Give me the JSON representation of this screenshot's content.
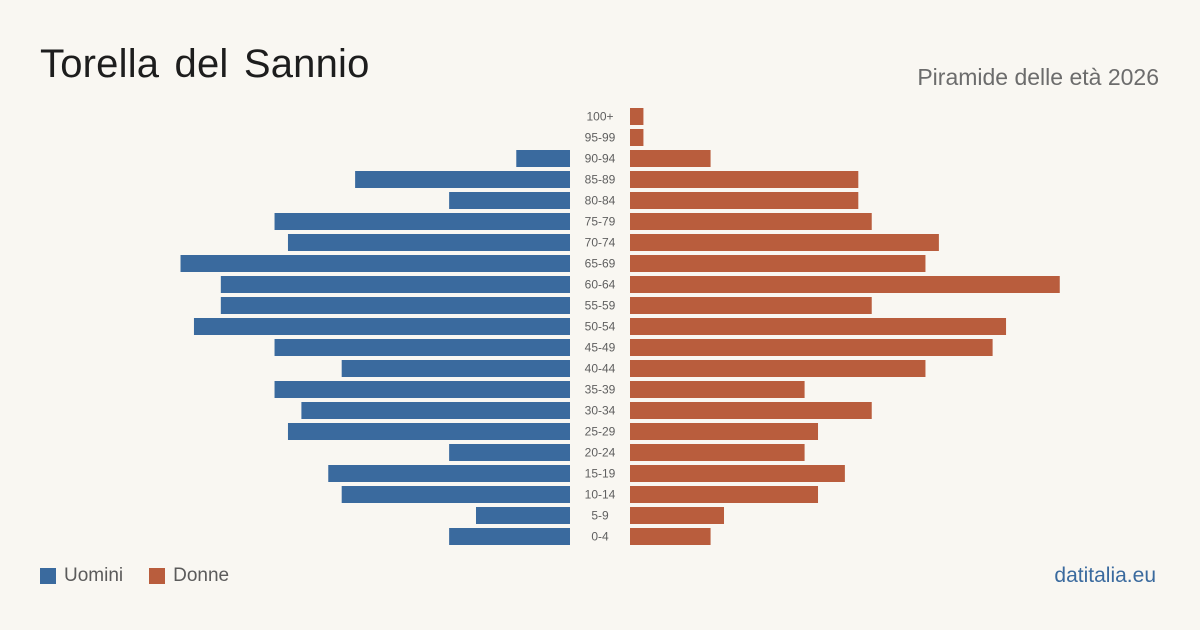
{
  "header": {
    "title": "Torella del Sannio",
    "subtitle": "Piramide delle età 2026"
  },
  "legend": {
    "men_label": "Uomini",
    "women_label": "Donne"
  },
  "footer": {
    "source": "datitalia.eu"
  },
  "colors": {
    "men": "#3a6a9e",
    "women": "#b95d3d",
    "label": "#5f5f5f",
    "source": "#3a6a9e"
  },
  "chart_data": {
    "type": "bar",
    "orientation": "horizontal-pyramid",
    "categories": [
      "100+",
      "95-99",
      "90-94",
      "85-89",
      "80-84",
      "75-79",
      "70-74",
      "65-69",
      "60-64",
      "55-59",
      "50-54",
      "45-49",
      "40-44",
      "35-39",
      "30-34",
      "25-29",
      "20-24",
      "15-19",
      "10-14",
      "5-9",
      "0-4"
    ],
    "series": [
      {
        "name": "Uomini",
        "values": [
          0,
          0,
          4,
          16,
          9,
          22,
          21,
          29,
          26,
          26,
          28,
          22,
          17,
          22,
          20,
          21,
          9,
          18,
          17,
          7,
          9
        ]
      },
      {
        "name": "Donne",
        "values": [
          1,
          1,
          6,
          17,
          17,
          18,
          23,
          22,
          32,
          18,
          28,
          27,
          22,
          13,
          18,
          14,
          13,
          16,
          14,
          7,
          6
        ]
      }
    ],
    "legend": "bottom-left",
    "grid": false
  }
}
